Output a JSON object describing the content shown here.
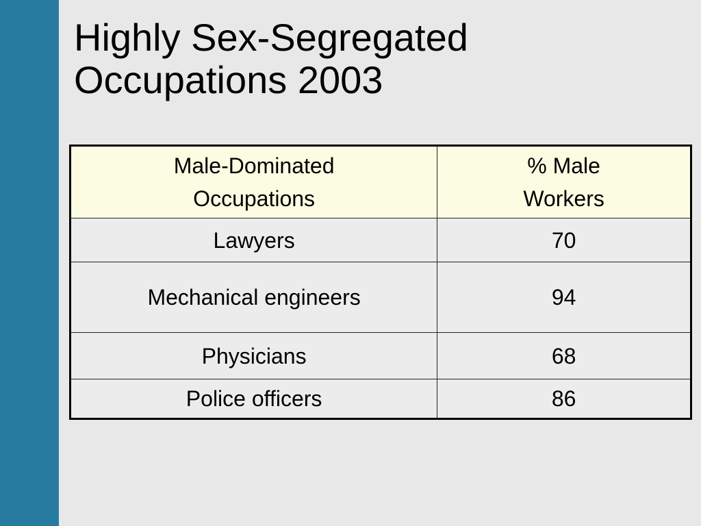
{
  "colors": {
    "side_band": "#277ba0",
    "background": "#e8e8e8",
    "header_fill": "#fcfce2"
  },
  "slide": {
    "title_lines": [
      "Highly Sex-Segregated",
      "Occupations 2003"
    ]
  },
  "table": {
    "headers": [
      [
        "Male-Dominated",
        "Occupations"
      ],
      [
        "% Male",
        "Workers"
      ]
    ],
    "rows": [
      [
        "Lawyers",
        "70"
      ],
      [
        "Mechanical engineers",
        "94"
      ],
      [
        "Physicians",
        "68"
      ],
      [
        "Police officers",
        "86"
      ]
    ]
  }
}
